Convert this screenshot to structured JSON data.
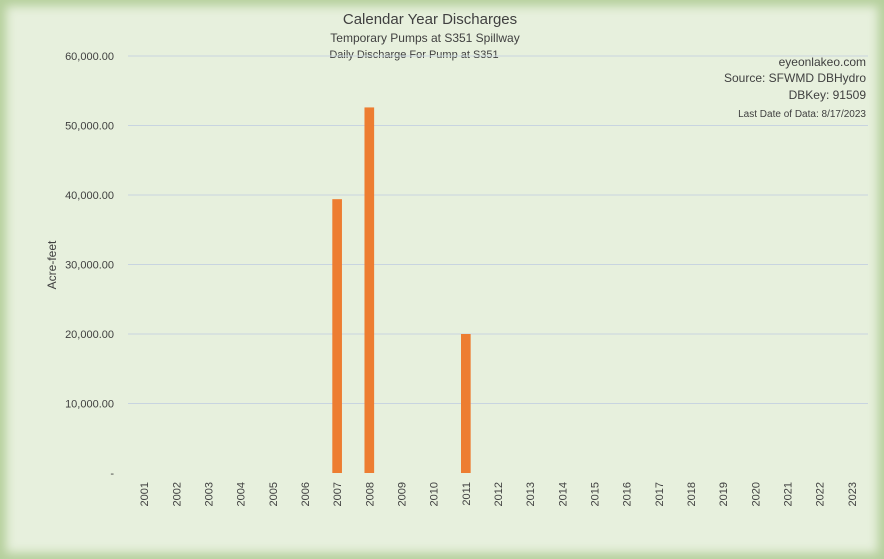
{
  "chart_data": {
    "type": "bar",
    "title": "Calendar Year Discharges",
    "subtitle": "Temporary Pumps at S351 Spillway",
    "subtitle2": "Daily Discharge For Pump at S351",
    "ylabel": "Acre-feet",
    "xlabel": "",
    "ylim": [
      0,
      60000
    ],
    "yticks": [
      {
        "value": 0,
        "label": "-"
      },
      {
        "value": 10000,
        "label": "10,000.00"
      },
      {
        "value": 20000,
        "label": "20,000.00"
      },
      {
        "value": 30000,
        "label": "30,000.00"
      },
      {
        "value": 40000,
        "label": "40,000.00"
      },
      {
        "value": 50000,
        "label": "50,000.00"
      },
      {
        "value": 60000,
        "label": "60,000.00"
      }
    ],
    "grid": true,
    "bar_color": "#ed7d31",
    "categories": [
      "2001",
      "2002",
      "2003",
      "2004",
      "2005",
      "2006",
      "2007",
      "2008",
      "2009",
      "2010",
      "2011",
      "2012",
      "2013",
      "2014",
      "2015",
      "2016",
      "2017",
      "2018",
      "2019",
      "2020",
      "2021",
      "2022",
      "2023"
    ],
    "values": [
      0,
      0,
      0,
      0,
      0,
      0,
      39400,
      52600,
      0,
      0,
      20000,
      0,
      0,
      0,
      0,
      0,
      0,
      0,
      0,
      0,
      0,
      0,
      0
    ],
    "source_lines": [
      "eyeonlakeo.com",
      "Source: SFWMD DBHydro",
      "DBKey: 91509"
    ],
    "last_date": "Last Date of Data: 8/17/2023"
  }
}
